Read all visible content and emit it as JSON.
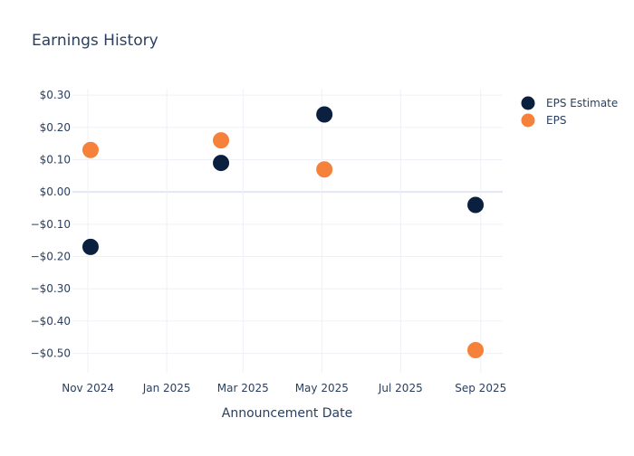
{
  "chart_data": {
    "type": "scatter",
    "title": "Earnings History",
    "xlabel": "Announcement Date",
    "ylabel": "",
    "x_axis_type": "date",
    "xlim": [
      "2024-10-20",
      "2025-09-18"
    ],
    "ylim": [
      -0.56,
      0.32
    ],
    "x_ticks": [
      {
        "value": "2024-11-01",
        "label": "Nov 2024"
      },
      {
        "value": "2025-01-01",
        "label": "Jan 2025"
      },
      {
        "value": "2025-03-01",
        "label": "Mar 2025"
      },
      {
        "value": "2025-05-01",
        "label": "May 2025"
      },
      {
        "value": "2025-07-01",
        "label": "Jul 2025"
      },
      {
        "value": "2025-09-01",
        "label": "Sep 2025"
      }
    ],
    "y_ticks": [
      {
        "value": 0.3,
        "label": "$0.30"
      },
      {
        "value": 0.2,
        "label": "$0.20"
      },
      {
        "value": 0.1,
        "label": "$0.10"
      },
      {
        "value": 0.0,
        "label": "$0.00"
      },
      {
        "value": -0.1,
        "label": "−$0.10"
      },
      {
        "value": -0.2,
        "label": "−$0.20"
      },
      {
        "value": -0.3,
        "label": "−$0.30"
      },
      {
        "value": -0.4,
        "label": "−$0.40"
      },
      {
        "value": -0.5,
        "label": "−$0.50"
      }
    ],
    "grid": true,
    "legend_position": "top-right",
    "series": [
      {
        "name": "EPS Estimate",
        "color": "#0b1f3f",
        "points": [
          {
            "x": "2024-11-03",
            "y": -0.17
          },
          {
            "x": "2025-02-12",
            "y": 0.09
          },
          {
            "x": "2025-05-03",
            "y": 0.24
          },
          {
            "x": "2025-08-28",
            "y": -0.04
          }
        ]
      },
      {
        "name": "EPS",
        "color": "#f5813a",
        "points": [
          {
            "x": "2024-11-03",
            "y": 0.13
          },
          {
            "x": "2025-02-12",
            "y": 0.16
          },
          {
            "x": "2025-05-03",
            "y": 0.07
          },
          {
            "x": "2025-08-28",
            "y": -0.49
          }
        ]
      }
    ]
  }
}
